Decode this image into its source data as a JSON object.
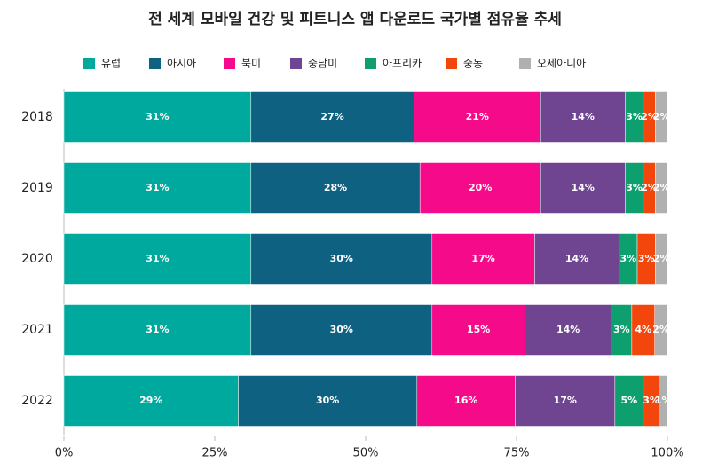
{
  "chart_data": {
    "type": "stacked-bar-horizontal",
    "title": "전 세계 모바일 건강 및 피트니스 앱 다운로드 국가별 점유율 추세",
    "categories": [
      "2018",
      "2019",
      "2020",
      "2021",
      "2022"
    ],
    "series": [
      {
        "name": "유럽",
        "color": "#00a99d",
        "values": [
          31,
          31,
          31,
          31,
          28.9
        ],
        "value_labels": [
          "31%",
          "31%",
          "31%",
          "31%",
          "29%"
        ]
      },
      {
        "name": "아시아",
        "color": "#0e6180",
        "values": [
          27,
          28,
          30,
          30,
          29.6
        ],
        "value_labels": [
          "27%",
          "28%",
          "30%",
          "30%",
          "30%"
        ]
      },
      {
        "name": "북미",
        "color": "#f50a8a",
        "values": [
          21,
          20,
          17,
          15.4,
          16.3
        ],
        "value_labels": [
          "21%",
          "20%",
          "17%",
          "15%",
          "16%"
        ]
      },
      {
        "name": "중남미",
        "color": "#6f4491",
        "values": [
          14,
          14,
          14,
          14.3,
          16.5
        ],
        "value_labels": [
          "14%",
          "14%",
          "14%",
          "14%",
          "17%"
        ]
      },
      {
        "name": "아프리카",
        "color": "#0d9f6e",
        "values": [
          3,
          3,
          3,
          3.4,
          4.7
        ],
        "value_labels": [
          "3%",
          "3%",
          "3%",
          "3%",
          "5%"
        ]
      },
      {
        "name": "중동",
        "color": "#f2460d",
        "values": [
          2,
          2,
          3,
          3.8,
          2.6
        ],
        "value_labels": [
          "2%",
          "2%",
          "3%",
          "4%",
          "3%"
        ]
      },
      {
        "name": "오세아니아",
        "color": "#b0b0b0",
        "values": [
          2,
          2,
          2,
          2,
          1.4
        ],
        "value_labels": [
          "2%",
          "2%",
          "2%",
          "2%",
          "1%"
        ]
      }
    ],
    "xlim": [
      0,
      100
    ],
    "xticks": [
      {
        "value": 0,
        "label": "0%"
      },
      {
        "value": 25,
        "label": "25%"
      },
      {
        "value": 50,
        "label": "50%"
      },
      {
        "value": 75,
        "label": "75%"
      },
      {
        "value": 100,
        "label": "100%"
      }
    ]
  }
}
